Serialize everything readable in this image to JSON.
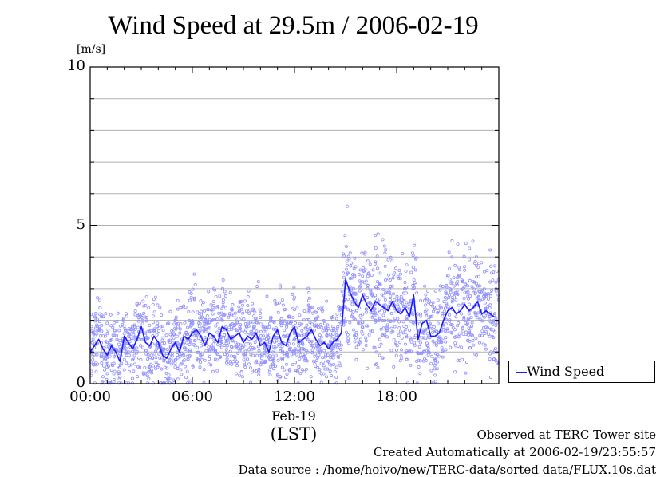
{
  "chart_data": {
    "type": "scatter",
    "title": "Wind Speed at 29.5m / 2006-02-19",
    "ylabel": "[m/s]",
    "xlabel": "(LST)",
    "ylim": [
      0,
      10
    ],
    "xlim": [
      0,
      24
    ],
    "yticks": [
      {
        "value": 0,
        "label": "0"
      },
      {
        "value": 5,
        "label": "5"
      },
      {
        "value": 10,
        "label": "10"
      }
    ],
    "ygrid": [
      1,
      2,
      3,
      4,
      5,
      6,
      7,
      8,
      9
    ],
    "xticks": [
      {
        "value": 0,
        "label": "00:00"
      },
      {
        "value": 6,
        "label": "06:00"
      },
      {
        "value": 12,
        "label": "12:00"
      },
      {
        "value": 18,
        "label": "18:00"
      }
    ],
    "date_label": "Feb-19",
    "legend": {
      "position": "right",
      "entries": [
        "Wind Speed"
      ]
    },
    "series": [
      {
        "name": "Wind Speed",
        "color": "#1a1aff",
        "point_color": "#8f8fff",
        "x": [
          0.0,
          0.25,
          0.5,
          0.75,
          1.0,
          1.25,
          1.5,
          1.75,
          2.0,
          2.25,
          2.5,
          2.75,
          3.0,
          3.25,
          3.5,
          3.75,
          4.0,
          4.25,
          4.5,
          4.75,
          5.0,
          5.25,
          5.5,
          5.75,
          6.0,
          6.25,
          6.5,
          6.75,
          7.0,
          7.25,
          7.5,
          7.75,
          8.0,
          8.25,
          8.5,
          8.75,
          9.0,
          9.25,
          9.5,
          9.75,
          10.0,
          10.25,
          10.5,
          10.75,
          11.0,
          11.25,
          11.5,
          11.75,
          12.0,
          12.25,
          12.5,
          12.75,
          13.0,
          13.25,
          13.5,
          13.75,
          14.0,
          14.25,
          14.5,
          14.75,
          15.0,
          15.25,
          15.5,
          15.75,
          16.0,
          16.25,
          16.5,
          16.75,
          17.0,
          17.25,
          17.5,
          17.75,
          18.0,
          18.25,
          18.5,
          18.75,
          19.0,
          19.25,
          19.5,
          19.75,
          20.0,
          20.25,
          20.5,
          20.75,
          21.0,
          21.25,
          21.5,
          21.75,
          22.0,
          22.25,
          22.5,
          22.75,
          23.0,
          23.25,
          23.5,
          23.75
        ],
        "y": [
          1.0,
          1.2,
          1.4,
          1.1,
          0.9,
          1.2,
          1.0,
          0.7,
          1.5,
          1.3,
          1.1,
          1.4,
          1.8,
          1.3,
          1.2,
          1.5,
          1.3,
          0.9,
          0.8,
          1.1,
          1.3,
          1.0,
          1.5,
          1.4,
          1.6,
          1.7,
          1.5,
          1.2,
          1.6,
          1.5,
          1.3,
          1.8,
          1.7,
          1.4,
          1.5,
          1.6,
          1.3,
          1.5,
          1.4,
          1.6,
          1.2,
          1.3,
          1.0,
          1.5,
          1.7,
          1.3,
          1.2,
          1.6,
          1.8,
          1.3,
          1.4,
          1.5,
          1.7,
          1.4,
          1.2,
          1.3,
          1.1,
          1.3,
          1.4,
          1.6,
          3.3,
          2.9,
          2.6,
          2.4,
          2.8,
          2.5,
          2.3,
          2.6,
          2.5,
          2.4,
          2.3,
          2.6,
          2.3,
          2.2,
          2.4,
          2.1,
          2.8,
          1.4,
          1.9,
          2.0,
          1.5,
          1.5,
          1.6,
          2.0,
          2.3,
          2.4,
          2.2,
          2.3,
          2.5,
          2.3,
          2.4,
          2.6,
          2.2,
          2.3,
          2.2,
          2.1
        ]
      }
    ]
  },
  "footer": {
    "line1": "Observed at TERC Tower site",
    "line2": "Created Automatically at 2006-02-19/23:55:57",
    "line3": "Data source : /home/hoivo/new/TERC-data/sorted  data/FLUX.10s.dat"
  }
}
